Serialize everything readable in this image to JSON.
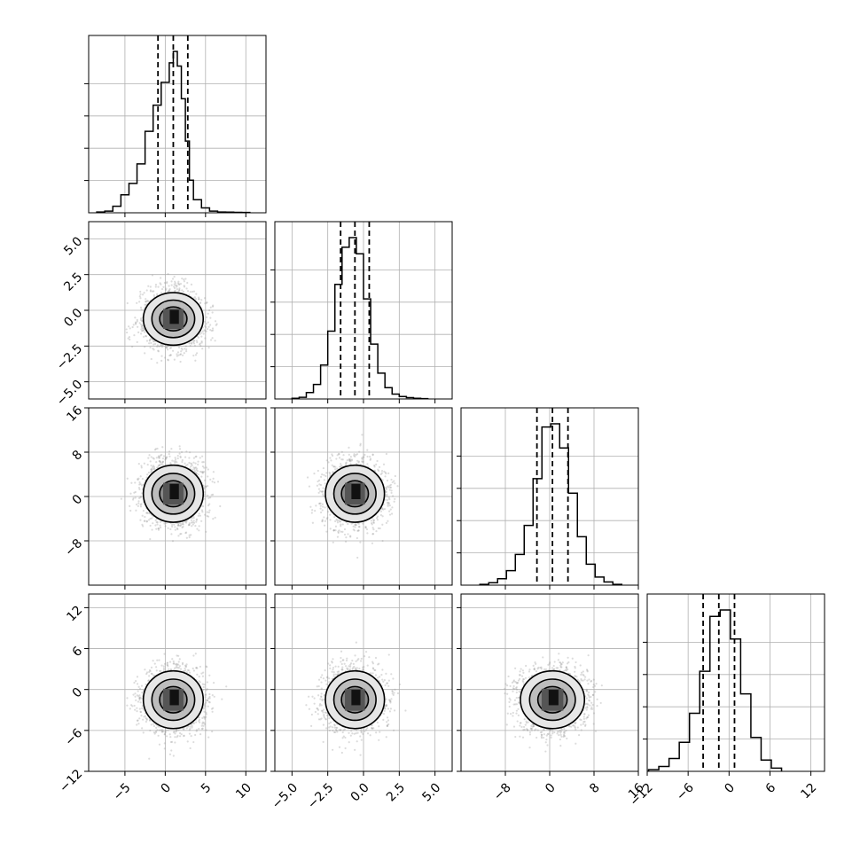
{
  "chart_data": {
    "type": "corner",
    "title": "",
    "parameters": [
      "",
      "",
      "",
      ""
    ],
    "ranges": [
      [
        -9.5,
        12.5
      ],
      [
        -6.2,
        6.2
      ],
      [
        -16,
        16
      ],
      [
        -12,
        14
      ]
    ],
    "ticks": [
      {
        "values": [
          -5,
          0,
          5,
          10
        ],
        "labels": [
          "−5",
          "0",
          "5",
          "10"
        ]
      },
      {
        "values": [
          -5.0,
          -2.5,
          0.0,
          2.5,
          5.0
        ],
        "labels": [
          "−5.0",
          "−2.5",
          "0.0",
          "2.5",
          "5.0"
        ]
      },
      {
        "values": [
          -8,
          0,
          8,
          16
        ],
        "labels": [
          "−8",
          "0",
          "8",
          "16"
        ]
      },
      {
        "values": [
          -12,
          -6,
          0,
          6,
          12
        ],
        "labels": [
          "−12",
          "−6",
          "0",
          "6",
          "12"
        ]
      }
    ],
    "row_ticks": [
      null,
      {
        "values": [
          -5.0,
          -2.5,
          0.0,
          2.5,
          5.0
        ],
        "labels": [
          "−5.0",
          "−2.5",
          "0.0",
          "2.5",
          "5.0"
        ]
      },
      {
        "values": [
          -8,
          0,
          8,
          16
        ],
        "labels": [
          "−8",
          "0",
          "8",
          "16"
        ]
      },
      {
        "values": [
          -12,
          -6,
          0,
          6,
          12
        ],
        "labels": [
          "−12",
          "−6",
          "0",
          "6",
          "12"
        ]
      }
    ],
    "means": [
      1,
      -0.6,
      0.5,
      -1.5
    ],
    "sigmas": [
      1.8,
      1.0,
      2.8,
      2.3
    ],
    "quantiles": [
      [
        -0.9,
        1.0,
        2.8
      ],
      [
        -1.6,
        -0.6,
        0.4
      ],
      [
        -2.3,
        0.5,
        3.3
      ],
      [
        -3.8,
        -1.5,
        0.8
      ]
    ],
    "histograms": [
      {
        "bin_edges": [
          -8.5,
          -7.5,
          -6.5,
          -5.5,
          -4.5,
          -3.5,
          -2.5,
          -1.5,
          -0.5,
          0.5,
          1.0,
          1.5,
          2.0,
          2.5,
          3.0,
          3.5,
          4.5,
          5.5,
          6.5,
          7.5,
          8.5,
          9.5,
          10.5
        ],
        "counts": [
          0.005,
          0.01,
          0.04,
          0.11,
          0.18,
          0.3,
          0.5,
          0.66,
          0.8,
          0.92,
          0.99,
          0.9,
          0.7,
          0.44,
          0.2,
          0.08,
          0.03,
          0.01,
          0.005,
          0.004,
          0.003,
          0.002
        ]
      },
      {
        "bin_edges": [
          -5.0,
          -4.5,
          -4.0,
          -3.5,
          -3.0,
          -2.5,
          -2.0,
          -1.5,
          -1.0,
          -0.5,
          0.0,
          0.5,
          1.0,
          1.5,
          2.0,
          2.5,
          3.0,
          3.5,
          4.0,
          4.5
        ],
        "counts": [
          0.004,
          0.01,
          0.04,
          0.09,
          0.21,
          0.42,
          0.71,
          0.94,
          1.0,
          0.9,
          0.62,
          0.34,
          0.16,
          0.07,
          0.03,
          0.015,
          0.008,
          0.004,
          0.002
        ]
      },
      {
        "bin_edges": [
          -12.6,
          -11,
          -9.4,
          -7.8,
          -6.2,
          -4.6,
          -3.0,
          -1.4,
          0.2,
          1.8,
          3.4,
          5.0,
          6.6,
          8.2,
          9.8,
          11.4,
          13.0
        ],
        "counts": [
          0.005,
          0.015,
          0.04,
          0.09,
          0.19,
          0.37,
          0.66,
          0.98,
          1.0,
          0.85,
          0.57,
          0.3,
          0.13,
          0.05,
          0.02,
          0.005
        ]
      },
      {
        "bin_edges": [
          -11.8,
          -10.3,
          -8.8,
          -7.3,
          -5.8,
          -4.3,
          -2.8,
          -1.3,
          0.2,
          1.7,
          3.2,
          4.7,
          6.2,
          7.7
        ],
        "counts": [
          0.01,
          0.03,
          0.08,
          0.18,
          0.36,
          0.62,
          0.96,
          1.0,
          0.82,
          0.48,
          0.21,
          0.07,
          0.02
        ]
      }
    ],
    "grid": true,
    "legend": "none"
  }
}
